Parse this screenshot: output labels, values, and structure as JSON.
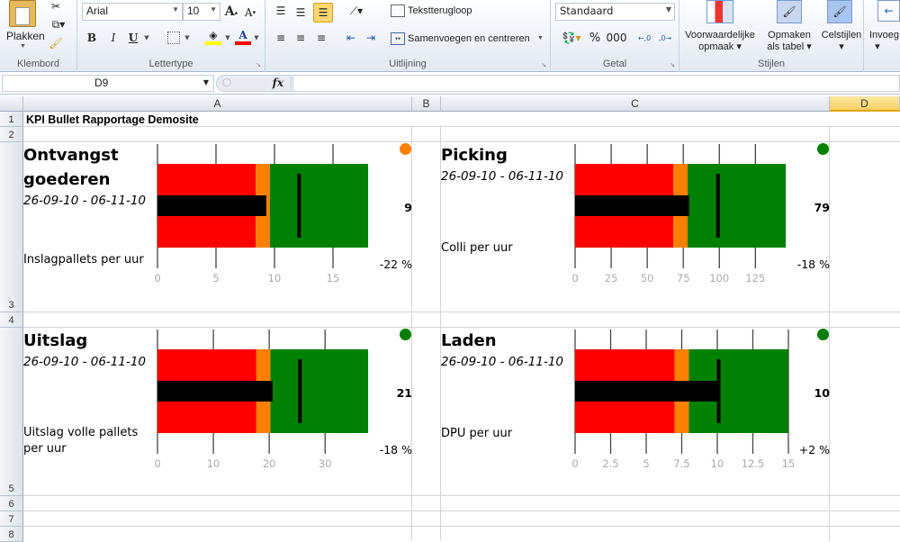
{
  "ribbon": {
    "clipboard": {
      "paste": "Plakken",
      "label": "Klembord"
    },
    "font": {
      "name": "Arial",
      "size": "10",
      "bold": "B",
      "italic": "I",
      "underline": "U",
      "label": "Lettertype"
    },
    "alignment": {
      "wrap": "Tekstterugloop",
      "merge": "Samenvoegen en centreren",
      "label": "Uitlijning"
    },
    "number": {
      "format": "Standaard",
      "percent": "%",
      "thousands": "000",
      "label": "Getal"
    },
    "styles": {
      "conditional": "Voorwaardelijke",
      "conditional2": "opmaak",
      "table": "Opmaken",
      "table2": "als tabel",
      "cell": "Celstijlen",
      "label": "Stijlen"
    },
    "cells": {
      "insert": "Invoeg"
    }
  },
  "formula_bar": {
    "name_box": "D9",
    "fx": "fx",
    "formula": ""
  },
  "columns": [
    "A",
    "B",
    "C",
    "D"
  ],
  "rows": [
    "1",
    "2",
    "3",
    "4",
    "5",
    "6",
    "7",
    "8"
  ],
  "sheet": {
    "title": "KPI Bullet Rapportage Demosite"
  },
  "colors": {
    "poor": "#ff0000",
    "satisfactory": "#ff8000",
    "good": "#008000",
    "measure": "#000000",
    "status_orange": "#ff8000",
    "status_green": "#008000"
  },
  "panels": [
    {
      "title": "Ontvangst goederen",
      "date": "26-09-10 - 06-11-10",
      "metric": "Inslagpallets per uur",
      "value": "9",
      "delta": "-22 %",
      "status": "orange",
      "chart_data": {
        "type": "bullet",
        "ticks": [
          "0",
          "5",
          "10",
          "15"
        ],
        "tick_values": [
          0,
          5,
          10,
          15
        ],
        "xlim": [
          0,
          18
        ],
        "ranges": [
          8.4,
          9.6,
          18
        ],
        "measure": 9.3,
        "target": 12.1
      }
    },
    {
      "title": "Picking",
      "date": "26-09-10 - 06-11-10",
      "metric": "Colli per uur",
      "value": "79",
      "delta": "-18 %",
      "status": "green",
      "chart_data": {
        "type": "bullet",
        "ticks": [
          "0",
          "25",
          "50",
          "75",
          "100",
          "125"
        ],
        "tick_values": [
          0,
          25,
          50,
          75,
          100,
          125
        ],
        "xlim": [
          0,
          146
        ],
        "ranges": [
          68,
          78,
          146
        ],
        "measure": 79,
        "target": 99
      }
    },
    {
      "title": "Uitslag",
      "date": "26-09-10 - 06-11-10",
      "metric": "Uitslag volle pallets per uur",
      "value": "21",
      "delta": "-18 %",
      "status": "green",
      "chart_data": {
        "type": "bullet",
        "ticks": [
          "0",
          "10",
          "20",
          "30"
        ],
        "tick_values": [
          0,
          10,
          20,
          30
        ],
        "xlim": [
          0,
          37.7
        ],
        "ranges": [
          17.7,
          20.2,
          37.7
        ],
        "measure": 20.6,
        "target": 25.5
      }
    },
    {
      "title": "Laden",
      "date": "26-09-10 - 06-11-10",
      "metric": "DPU per uur",
      "value": "10",
      "delta": "+2 %",
      "status": "green",
      "chart_data": {
        "type": "bullet",
        "ticks": [
          "0",
          "2.5",
          "5",
          "7.5",
          "10",
          "12.5",
          "15"
        ],
        "tick_values": [
          0,
          2.5,
          5,
          7.5,
          10,
          12.5,
          15
        ],
        "xlim": [
          0,
          15
        ],
        "ranges": [
          7,
          8,
          15
        ],
        "measure": 10.2,
        "target": 10.1
      }
    }
  ]
}
